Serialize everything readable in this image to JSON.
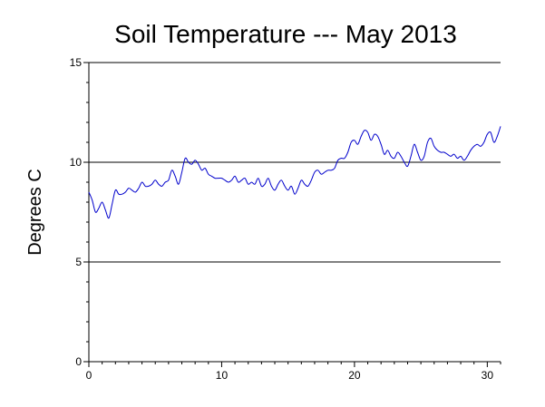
{
  "chart_data": {
    "type": "line",
    "title": "Soil Temperature --- May 2013",
    "xlabel": "",
    "ylabel": "Degrees C",
    "xlim": [
      0,
      31
    ],
    "ylim": [
      0,
      15
    ],
    "x_ticks": [
      0,
      10,
      20,
      30
    ],
    "x_tick_labels": [
      "0",
      "10",
      "20",
      "30"
    ],
    "y_ticks": [
      0,
      5,
      10,
      15
    ],
    "y_tick_labels": [
      "0",
      "5",
      "10",
      "15"
    ],
    "grid": "horizontal",
    "legend": "none",
    "series": [
      {
        "color": "#0000cc",
        "x": [
          0,
          0.25,
          0.5,
          0.75,
          1.0,
          1.25,
          1.5,
          1.75,
          2.0,
          2.25,
          2.5,
          2.75,
          3.0,
          3.25,
          3.5,
          3.75,
          4.0,
          4.25,
          4.5,
          4.75,
          5.0,
          5.25,
          5.5,
          5.75,
          6.0,
          6.25,
          6.5,
          6.75,
          7.0,
          7.25,
          7.5,
          7.75,
          8.0,
          8.25,
          8.5,
          8.75,
          9.0,
          9.25,
          9.5,
          9.75,
          10.0,
          10.25,
          10.5,
          10.75,
          11.0,
          11.25,
          11.5,
          11.75,
          12.0,
          12.25,
          12.5,
          12.75,
          13.0,
          13.25,
          13.5,
          13.75,
          14.0,
          14.25,
          14.5,
          14.75,
          15.0,
          15.25,
          15.5,
          15.75,
          16.0,
          16.25,
          16.5,
          16.75,
          17.0,
          17.25,
          17.5,
          17.75,
          18.0,
          18.25,
          18.5,
          18.75,
          19.0,
          19.25,
          19.5,
          19.75,
          20.0,
          20.25,
          20.5,
          20.75,
          21.0,
          21.25,
          21.5,
          21.75,
          22.0,
          22.25,
          22.5,
          22.75,
          23.0,
          23.25,
          23.5,
          23.75,
          24.0,
          24.25,
          24.5,
          24.75,
          25.0,
          25.25,
          25.5,
          25.75,
          26.0,
          26.25,
          26.5,
          26.75,
          27.0,
          27.25,
          27.5,
          27.75,
          28.0,
          28.25,
          28.5,
          28.75,
          29.0,
          29.25,
          29.5,
          29.75,
          30.0,
          30.25,
          30.5,
          30.75,
          31.0
        ],
        "values": [
          8.5,
          8.1,
          7.5,
          7.7,
          8.0,
          7.6,
          7.2,
          7.9,
          8.6,
          8.4,
          8.4,
          8.5,
          8.7,
          8.6,
          8.5,
          8.7,
          9.0,
          8.8,
          8.8,
          8.9,
          9.1,
          8.9,
          8.8,
          9.0,
          9.1,
          9.6,
          9.3,
          8.9,
          9.5,
          10.2,
          10.0,
          9.9,
          10.1,
          9.9,
          9.6,
          9.7,
          9.4,
          9.3,
          9.2,
          9.2,
          9.2,
          9.1,
          9.0,
          9.1,
          9.3,
          9.0,
          9.1,
          9.2,
          8.9,
          9.0,
          8.9,
          9.2,
          8.8,
          8.9,
          9.2,
          8.8,
          8.6,
          8.9,
          9.1,
          8.8,
          8.6,
          8.8,
          8.4,
          8.7,
          9.1,
          8.9,
          8.8,
          9.1,
          9.5,
          9.6,
          9.4,
          9.5,
          9.6,
          9.6,
          9.7,
          10.1,
          10.2,
          10.2,
          10.5,
          11.0,
          11.1,
          10.9,
          11.3,
          11.6,
          11.5,
          11.1,
          11.4,
          11.3,
          10.9,
          10.4,
          10.6,
          10.3,
          10.2,
          10.5,
          10.3,
          10.0,
          9.8,
          10.3,
          10.9,
          10.5,
          10.1,
          10.3,
          11.0,
          11.2,
          10.8,
          10.6,
          10.5,
          10.5,
          10.4,
          10.3,
          10.4,
          10.2,
          10.3,
          10.1,
          10.3,
          10.6,
          10.8,
          10.9,
          10.8,
          11.0,
          11.4,
          11.5,
          11.0,
          11.3,
          11.8
        ]
      }
    ]
  }
}
